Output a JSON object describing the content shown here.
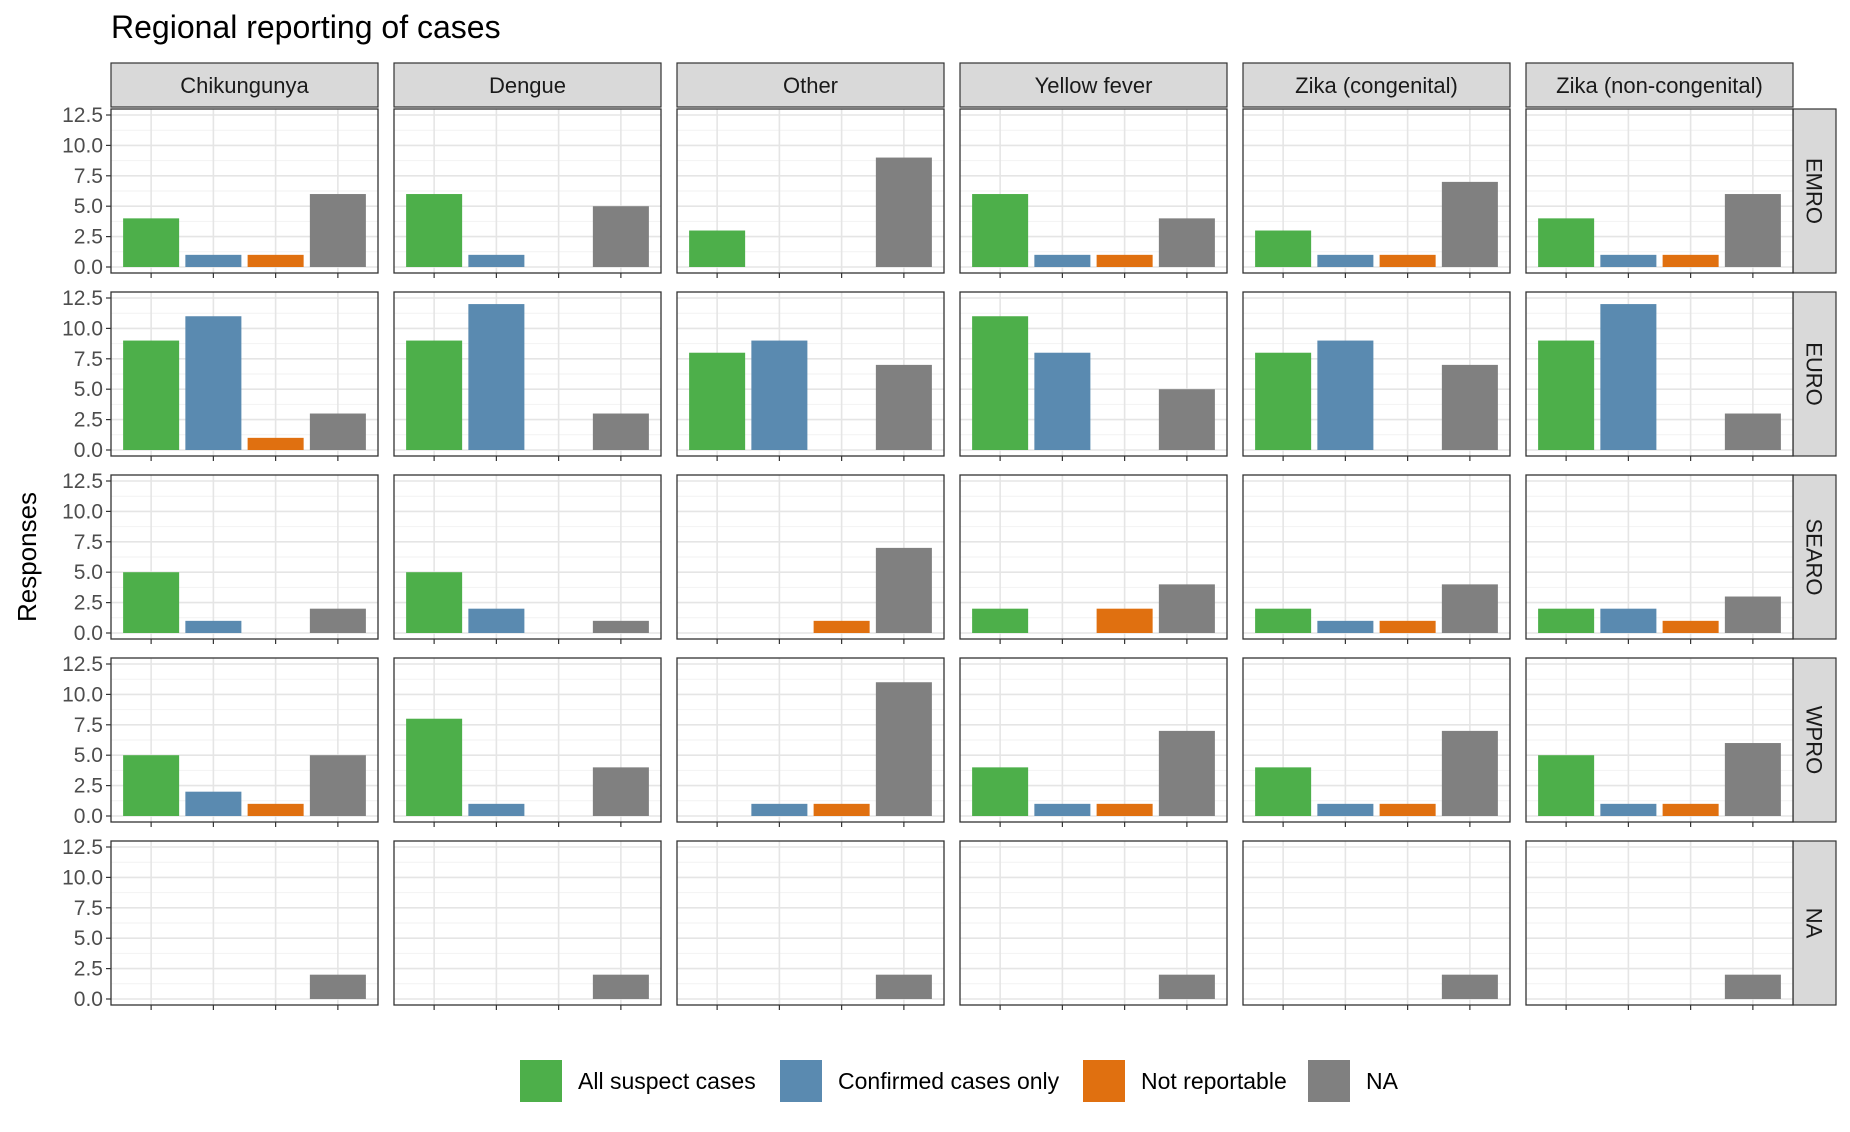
{
  "chart_data": {
    "type": "bar",
    "title": "Regional reporting of cases",
    "ylabel": "Responses",
    "xlabel": "",
    "ylim": [
      0,
      12.5
    ],
    "yticks": [
      "0.0",
      "2.5",
      "5.0",
      "7.5",
      "10.0",
      "12.5"
    ],
    "ytick_values": [
      0,
      2.5,
      5,
      7.5,
      10,
      12.5
    ],
    "facet_columns": [
      "Chikungunya",
      "Dengue",
      "Other",
      "Yellow fever",
      "Zika (congenital)",
      "Zika (non-congenital)"
    ],
    "facet_rows": [
      "EMRO",
      "EURO",
      "SEARO",
      "WPRO",
      "NA"
    ],
    "categories": [
      "All suspect cases",
      "Confirmed cases only",
      "Not reportable",
      "NA"
    ],
    "colors": [
      "#4daf4a",
      "#5a8ab0",
      "#e07010",
      "#808080"
    ],
    "grid": true,
    "legend_position": "bottom",
    "values": {
      "EMRO": {
        "Chikungunya": [
          4,
          1,
          1,
          6
        ],
        "Dengue": [
          6,
          1,
          0,
          5
        ],
        "Other": [
          3,
          0,
          0,
          9
        ],
        "Yellow fever": [
          6,
          1,
          1,
          4
        ],
        "Zika (congenital)": [
          3,
          1,
          1,
          7
        ],
        "Zika (non-congenital)": [
          4,
          1,
          1,
          6
        ]
      },
      "EURO": {
        "Chikungunya": [
          9,
          11,
          1,
          3
        ],
        "Dengue": [
          9,
          12,
          0,
          3
        ],
        "Other": [
          8,
          9,
          0,
          7
        ],
        "Yellow fever": [
          11,
          8,
          0,
          5
        ],
        "Zika (congenital)": [
          8,
          9,
          0,
          7
        ],
        "Zika (non-congenital)": [
          9,
          12,
          0,
          3
        ]
      },
      "SEARO": {
        "Chikungunya": [
          5,
          1,
          0,
          2
        ],
        "Dengue": [
          5,
          2,
          0,
          1
        ],
        "Other": [
          0,
          0,
          1,
          7
        ],
        "Yellow fever": [
          2,
          0,
          2,
          4
        ],
        "Zika (congenital)": [
          2,
          1,
          1,
          4
        ],
        "Zika (non-congenital)": [
          2,
          2,
          1,
          3
        ]
      },
      "WPRO": {
        "Chikungunya": [
          5,
          2,
          1,
          5
        ],
        "Dengue": [
          8,
          1,
          0,
          4
        ],
        "Other": [
          0,
          1,
          1,
          11
        ],
        "Yellow fever": [
          4,
          1,
          1,
          7
        ],
        "Zika (congenital)": [
          4,
          1,
          1,
          7
        ],
        "Zika (non-congenital)": [
          5,
          1,
          1,
          6
        ]
      },
      "NA": {
        "Chikungunya": [
          0,
          0,
          0,
          2
        ],
        "Dengue": [
          0,
          0,
          0,
          2
        ],
        "Other": [
          0,
          0,
          0,
          2
        ],
        "Yellow fever": [
          0,
          0,
          0,
          2
        ],
        "Zika (congenital)": [
          0,
          0,
          0,
          2
        ],
        "Zika (non-congenital)": [
          0,
          0,
          0,
          2
        ]
      }
    }
  }
}
